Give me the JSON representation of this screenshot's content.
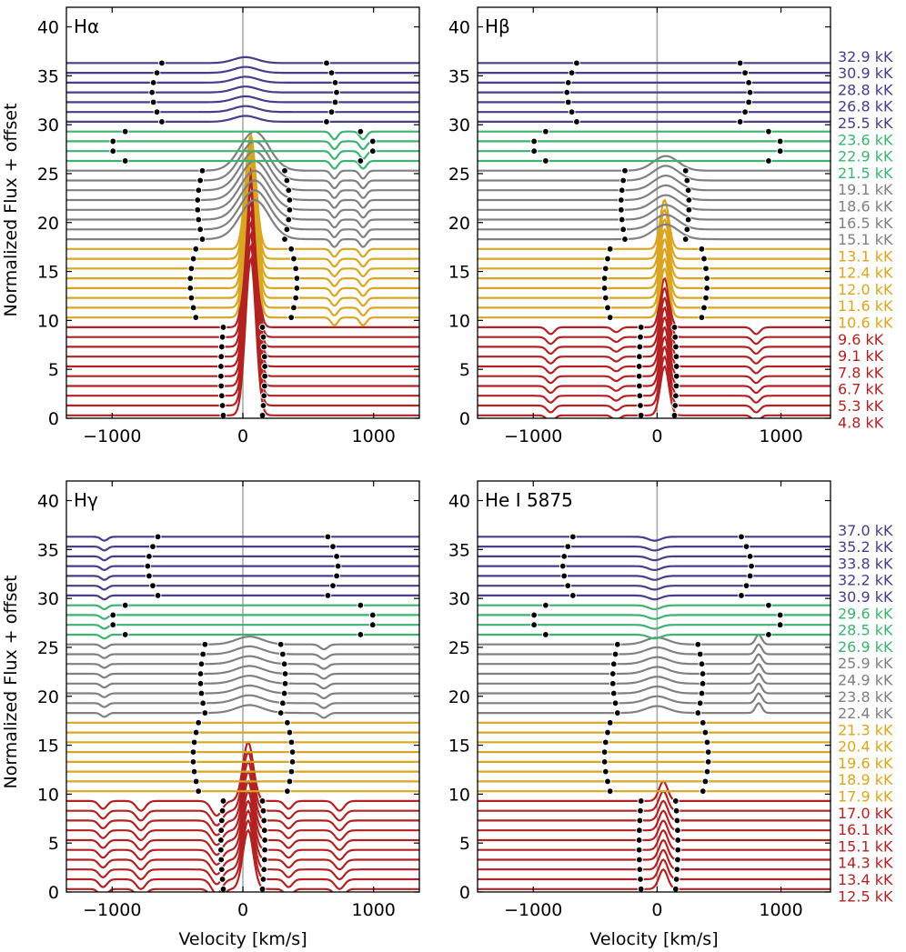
{
  "figure": {
    "y_label": "Normalized Flux + offset",
    "x_label": "Velocity [km/s]"
  },
  "colors": {
    "band1": "#b22222",
    "band2": "#daa520",
    "band3": "#808080",
    "band4": "#3cb371",
    "band5": "#483d8b",
    "marker": "#000000",
    "center_line": "#aaaaaa"
  },
  "chart_data": [
    {
      "type": "line",
      "title": "Hα",
      "xlabel": "",
      "ylabel": "Normalized Flux + offset",
      "xlim": [
        -1350,
        1350
      ],
      "ylim": [
        0,
        42
      ],
      "xticks": [
        -1000,
        0,
        1000
      ],
      "yticks": [
        0,
        5,
        10,
        15,
        20,
        25,
        30,
        35,
        40
      ],
      "series_count": 37,
      "series_spacing": 1.0,
      "bands": [
        {
          "name": "4.8–9.6 kK",
          "start": 0,
          "count": 10,
          "color_key": "band1"
        },
        {
          "name": "10.6–13.1 kK",
          "start": 10,
          "count": 8,
          "color_key": "band2"
        },
        {
          "name": "15.1–19.1 kK",
          "start": 18,
          "count": 8,
          "color_key": "band3"
        },
        {
          "name": "21.5–23.6 kK",
          "start": 26,
          "count": 4,
          "color_key": "band4"
        },
        {
          "name": "25.5–32.9 kK",
          "start": 30,
          "count": 7,
          "color_key": "band5"
        }
      ],
      "temperature_labels": [
        {
          "text": "32.9 kK",
          "y": 37.0,
          "color_key": "band5"
        },
        {
          "text": "30.9 kK",
          "y": 35.3,
          "color_key": "band5"
        },
        {
          "text": "28.8 kK",
          "y": 33.6,
          "color_key": "band5"
        },
        {
          "text": "26.8 kK",
          "y": 31.9,
          "color_key": "band5"
        },
        {
          "text": "25.5 kK",
          "y": 30.2,
          "color_key": "band5"
        },
        {
          "text": "23.6 kK",
          "y": 28.5,
          "color_key": "band4"
        },
        {
          "text": "22.9 kK",
          "y": 26.8,
          "color_key": "band4"
        },
        {
          "text": "21.5 kK",
          "y": 25.1,
          "color_key": "band4"
        },
        {
          "text": "19.1 kK",
          "y": 23.4,
          "color_key": "band3"
        },
        {
          "text": "18.6 kK",
          "y": 21.7,
          "color_key": "band3"
        },
        {
          "text": "16.5 kK",
          "y": 20.0,
          "color_key": "band3"
        },
        {
          "text": "15.1 kK",
          "y": 18.3,
          "color_key": "band3"
        },
        {
          "text": "13.1 kK",
          "y": 16.6,
          "color_key": "band2"
        },
        {
          "text": "12.4 kK",
          "y": 14.9,
          "color_key": "band2"
        },
        {
          "text": "12.0 kK",
          "y": 13.2,
          "color_key": "band2"
        },
        {
          "text": "11.6 kK",
          "y": 11.5,
          "color_key": "band2"
        },
        {
          "text": "10.6 kK",
          "y": 9.8,
          "color_key": "band2"
        },
        {
          "text": "9.6 kK",
          "y": 8.1,
          "color_key": "band1"
        },
        {
          "text": "9.1 kK",
          "y": 6.4,
          "color_key": "band1"
        },
        {
          "text": "7.8 kK",
          "y": 4.7,
          "color_key": "band1"
        },
        {
          "text": "6.7 kK",
          "y": 3.0,
          "color_key": "band1"
        },
        {
          "text": "5.3 kK",
          "y": 1.3,
          "color_key": "band1"
        },
        {
          "text": "4.8 kK",
          "y": -0.4,
          "color_key": "band1"
        }
      ],
      "line_components": [
        {
          "center": 60,
          "width": 40,
          "amp": 16,
          "growth": 0.0,
          "from": 0,
          "to": 18,
          "peak": 26
        },
        {
          "center": 90,
          "width": 110,
          "amp": 4,
          "from": 18,
          "to": 26
        },
        {
          "center": 700,
          "width": 25,
          "amp": -0.8,
          "from": 10,
          "to": 30
        },
        {
          "center": 920,
          "width": 25,
          "amp": -0.8,
          "from": 10,
          "to": 30
        },
        {
          "center": 20,
          "width": 90,
          "amp": 0.6,
          "from": 30,
          "to": 37
        }
      ],
      "marker_pairs": [
        {
          "left": -150,
          "right": 150,
          "from": 0,
          "to": 10
        },
        {
          "left": -360,
          "right": 370,
          "from": 10,
          "to": 18
        },
        {
          "left": -310,
          "right": 320,
          "from": 18,
          "to": 26
        },
        {
          "left": -900,
          "right": 900,
          "from": 26,
          "to": 30
        },
        {
          "left": -620,
          "right": 640,
          "from": 30,
          "to": 37
        }
      ]
    },
    {
      "type": "line",
      "title": "Hβ",
      "xlabel": "",
      "ylabel": "",
      "xlim": [
        -1450,
        1400
      ],
      "ylim": [
        0,
        42
      ],
      "xticks": [
        -1000,
        0,
        1000
      ],
      "yticks": [
        0,
        5,
        10,
        15,
        20,
        25,
        30,
        35,
        40
      ],
      "series_count": 37,
      "series_spacing": 1.0,
      "bands": [
        {
          "name": "4.8–9.6 kK",
          "start": 0,
          "count": 10,
          "color_key": "band1"
        },
        {
          "name": "10.6–13.1 kK",
          "start": 10,
          "count": 8,
          "color_key": "band2"
        },
        {
          "name": "15.1–19.1 kK",
          "start": 18,
          "count": 8,
          "color_key": "band3"
        },
        {
          "name": "21.5–23.6 kK",
          "start": 26,
          "count": 4,
          "color_key": "band4"
        },
        {
          "name": "25.5–32.9 kK",
          "start": 30,
          "count": 7,
          "color_key": "band5"
        }
      ],
      "temperature_labels": [],
      "line_components": [
        {
          "center": 60,
          "width": 35,
          "amp": 5,
          "from": 0,
          "to": 18
        },
        {
          "center": 70,
          "width": 100,
          "amp": 1.5,
          "from": 18,
          "to": 26
        },
        {
          "center": -860,
          "width": 30,
          "amp": -0.7,
          "from": 0,
          "to": 10
        },
        {
          "center": 800,
          "width": 30,
          "amp": -0.7,
          "from": 0,
          "to": 10
        },
        {
          "center": -330,
          "width": 30,
          "amp": -0.5,
          "from": 0,
          "to": 10
        }
      ],
      "marker_pairs": [
        {
          "left": -130,
          "right": 140,
          "from": 0,
          "to": 10
        },
        {
          "left": -380,
          "right": 360,
          "from": 10,
          "to": 18
        },
        {
          "left": -260,
          "right": 230,
          "from": 18,
          "to": 26
        },
        {
          "left": -900,
          "right": 900,
          "from": 26,
          "to": 30
        },
        {
          "left": -650,
          "right": 670,
          "from": 30,
          "to": 37
        }
      ]
    },
    {
      "type": "line",
      "title": "Hγ",
      "xlabel": "Velocity [km/s]",
      "ylabel": "Normalized Flux + offset",
      "xlim": [
        -1350,
        1350
      ],
      "ylim": [
        0,
        42
      ],
      "xticks": [
        -1000,
        0,
        1000
      ],
      "yticks": [
        0,
        5,
        10,
        15,
        20,
        25,
        30,
        35,
        40
      ],
      "series_count": 37,
      "series_spacing": 1.0,
      "bands": [
        {
          "name": "12.5–17.0 kK",
          "start": 0,
          "count": 10,
          "color_key": "band1"
        },
        {
          "name": "17.9–21.3 kK",
          "start": 10,
          "count": 8,
          "color_key": "band2"
        },
        {
          "name": "22.4–25.9 kK",
          "start": 18,
          "count": 8,
          "color_key": "band3"
        },
        {
          "name": "26.9–29.6 kK",
          "start": 26,
          "count": 4,
          "color_key": "band4"
        },
        {
          "name": "30.9–37.0 kK",
          "start": 30,
          "count": 7,
          "color_key": "band5"
        }
      ],
      "temperature_labels": [
        {
          "text": "37.0 kK",
          "y": 37.0,
          "color_key": "band5"
        },
        {
          "text": "35.2 kK",
          "y": 35.3,
          "color_key": "band5"
        },
        {
          "text": "33.8 kK",
          "y": 33.6,
          "color_key": "band5"
        },
        {
          "text": "32.2 kK",
          "y": 31.9,
          "color_key": "band5"
        },
        {
          "text": "30.9 kK",
          "y": 30.2,
          "color_key": "band5"
        },
        {
          "text": "29.6 kK",
          "y": 28.5,
          "color_key": "band4"
        },
        {
          "text": "28.5 kK",
          "y": 26.8,
          "color_key": "band4"
        },
        {
          "text": "26.9 kK",
          "y": 25.1,
          "color_key": "band4"
        },
        {
          "text": "25.9 kK",
          "y": 23.4,
          "color_key": "band3"
        },
        {
          "text": "24.9 kK",
          "y": 21.7,
          "color_key": "band3"
        },
        {
          "text": "23.8 kK",
          "y": 20.0,
          "color_key": "band3"
        },
        {
          "text": "22.4 kK",
          "y": 18.3,
          "color_key": "band3"
        },
        {
          "text": "21.3 kK",
          "y": 16.6,
          "color_key": "band2"
        },
        {
          "text": "20.4 kK",
          "y": 14.9,
          "color_key": "band2"
        },
        {
          "text": "19.6 kK",
          "y": 13.2,
          "color_key": "band2"
        },
        {
          "text": "18.9 kK",
          "y": 11.5,
          "color_key": "band2"
        },
        {
          "text": "17.9 kK",
          "y": 9.8,
          "color_key": "band2"
        },
        {
          "text": "17.0 kK",
          "y": 8.1,
          "color_key": "band1"
        },
        {
          "text": "16.1 kK",
          "y": 6.4,
          "color_key": "band1"
        },
        {
          "text": "15.1 kK",
          "y": 4.7,
          "color_key": "band1"
        },
        {
          "text": "14.3 kK",
          "y": 3.0,
          "color_key": "band1"
        },
        {
          "text": "13.4 kK",
          "y": 1.3,
          "color_key": "band1"
        },
        {
          "text": "12.5 kK",
          "y": -0.4,
          "color_key": "band1"
        }
      ],
      "line_components": [
        {
          "center": 40,
          "width": 40,
          "amp": 6,
          "from": 0,
          "to": 10
        },
        {
          "center": -200,
          "width": 40,
          "amp": -1.5,
          "from": 0,
          "to": 10
        },
        {
          "center": -780,
          "width": 35,
          "amp": -1.0,
          "from": 0,
          "to": 10
        },
        {
          "center": 740,
          "width": 35,
          "amp": -1.0,
          "from": 0,
          "to": 10
        },
        {
          "center": -1070,
          "width": 30,
          "amp": -0.8,
          "from": 0,
          "to": 10
        },
        {
          "center": 350,
          "width": 30,
          "amp": -0.8,
          "from": 0,
          "to": 10
        },
        {
          "center": 50,
          "width": 100,
          "amp": 0.8,
          "from": 18,
          "to": 26
        },
        {
          "center": 620,
          "width": 30,
          "amp": -0.5,
          "from": 18,
          "to": 26
        },
        {
          "center": -1060,
          "width": 25,
          "amp": -0.4,
          "from": 18,
          "to": 37
        }
      ],
      "marker_pairs": [
        {
          "left": -150,
          "right": 150,
          "from": 0,
          "to": 10
        },
        {
          "left": -340,
          "right": 340,
          "from": 10,
          "to": 18
        },
        {
          "left": -290,
          "right": 290,
          "from": 18,
          "to": 26
        },
        {
          "left": -900,
          "right": 900,
          "from": 26,
          "to": 30
        },
        {
          "left": -650,
          "right": 650,
          "from": 30,
          "to": 37
        }
      ]
    },
    {
      "type": "line",
      "title": "He I 5875",
      "xlabel": "Velocity [km/s]",
      "ylabel": "",
      "xlim": [
        -1450,
        1400
      ],
      "ylim": [
        0,
        42
      ],
      "xticks": [
        -1000,
        0,
        1000
      ],
      "yticks": [
        0,
        5,
        10,
        15,
        20,
        25,
        30,
        35,
        40
      ],
      "series_count": 37,
      "series_spacing": 1.0,
      "bands": [
        {
          "name": "12.5–17.0 kK",
          "start": 0,
          "count": 10,
          "color_key": "band1"
        },
        {
          "name": "17.9–21.3 kK",
          "start": 10,
          "count": 8,
          "color_key": "band2"
        },
        {
          "name": "22.4–25.9 kK",
          "start": 18,
          "count": 8,
          "color_key": "band3"
        },
        {
          "name": "26.9–29.6 kK",
          "start": 26,
          "count": 4,
          "color_key": "band4"
        },
        {
          "name": "30.9–37.0 kK",
          "start": 30,
          "count": 7,
          "color_key": "band5"
        }
      ],
      "temperature_labels": [],
      "line_components": [
        {
          "center": 50,
          "width": 35,
          "amp": 2,
          "from": 0,
          "to": 10
        },
        {
          "center": 0,
          "width": 90,
          "amp": 0.7,
          "from": 18,
          "to": 26
        },
        {
          "center": 820,
          "width": 25,
          "amp": 1.0,
          "from": 18,
          "to": 26
        },
        {
          "center": -20,
          "width": 50,
          "amp": -0.4,
          "from": 26,
          "to": 37
        }
      ],
      "marker_pairs": [
        {
          "left": -130,
          "right": 150,
          "from": 0,
          "to": 10
        },
        {
          "left": -380,
          "right": 370,
          "from": 10,
          "to": 18
        },
        {
          "left": -320,
          "right": 330,
          "from": 18,
          "to": 26
        },
        {
          "left": -900,
          "right": 900,
          "from": 26,
          "to": 30
        },
        {
          "left": -680,
          "right": 680,
          "from": 30,
          "to": 37
        }
      ]
    }
  ]
}
